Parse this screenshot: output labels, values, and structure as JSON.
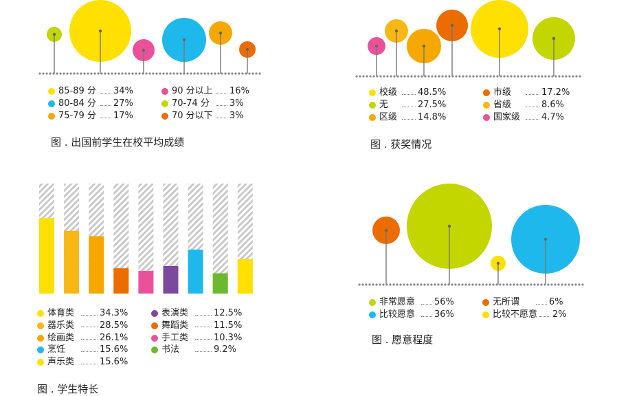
{
  "chart_data": [
    {
      "id": "scores",
      "type": "bubble",
      "title": "图 . 出国前学生在校平均成绩",
      "unit": "%",
      "series": [
        {
          "name": "85-89 分",
          "value": 34,
          "label": "34%",
          "color": "#FFE000"
        },
        {
          "name": "80-84 分",
          "value": 27,
          "label": "27%",
          "color": "#1FB8EC"
        },
        {
          "name": "75-79 分",
          "value": 17,
          "label": "17%",
          "color": "#F6A800"
        },
        {
          "name": "90 分以上",
          "value": 16,
          "label": "16%",
          "color": "#E9529B"
        },
        {
          "name": "70-74 分",
          "value": 3,
          "label": "3%",
          "color": "#C3D600"
        },
        {
          "name": "70 分以下",
          "value": 3,
          "label": "3%",
          "color": "#EC6C00"
        }
      ]
    },
    {
      "id": "awards",
      "type": "bubble",
      "title": "图 . 获奖情况",
      "unit": "%",
      "series": [
        {
          "name": "校级",
          "value": 48.5,
          "label": "48.5%",
          "color": "#FFE000"
        },
        {
          "name": "无",
          "value": 27.5,
          "label": "27.5%",
          "color": "#C3D600"
        },
        {
          "name": "区级",
          "value": 14.8,
          "label": "14.8%",
          "color": "#F6A800"
        },
        {
          "name": "市级",
          "value": 17.2,
          "label": "17.2%",
          "color": "#EC6C00"
        },
        {
          "name": "省级",
          "value": 8.6,
          "label": "8.6%",
          "color": "#F8B715"
        },
        {
          "name": "国家级",
          "value": 4.7,
          "label": "4.7%",
          "color": "#E9529B"
        }
      ]
    },
    {
      "id": "talents",
      "type": "bar",
      "title": "图 . 学生特长",
      "unit": "%",
      "ylim": [
        0,
        100
      ],
      "series": [
        {
          "name": "体育类",
          "value": 34.3,
          "label": "34.3%",
          "color": "#FFE000"
        },
        {
          "name": "器乐类",
          "value": 28.5,
          "label": "28.5%",
          "color": "#F8B715"
        },
        {
          "name": "绘画类",
          "value": 26.1,
          "label": "26.1%",
          "color": "#F6A800"
        },
        {
          "name": "烹饪",
          "value": 15.6,
          "label": "15.6%",
          "color": "#1FB8EC"
        },
        {
          "name": "声乐类",
          "value": 15.6,
          "label": "15.6%",
          "color": "#FFE000"
        },
        {
          "name": "表演类",
          "value": 12.5,
          "label": "12.5%",
          "color": "#7B4A9C"
        },
        {
          "name": "舞蹈类",
          "value": 11.5,
          "label": "11.5%",
          "color": "#EC6C00"
        },
        {
          "name": "手工类",
          "value": 10.3,
          "label": "10.3%",
          "color": "#E9529B"
        },
        {
          "name": "书法",
          "value": 9.2,
          "label": "9.2%",
          "color": "#6DB92E"
        }
      ]
    },
    {
      "id": "willingness",
      "type": "bubble",
      "title": "图 . 愿意程度",
      "unit": "%",
      "series": [
        {
          "name": "非常愿意",
          "value": 56,
          "label": "56%",
          "color": "#C3D600"
        },
        {
          "name": "比较愿意",
          "value": 36,
          "label": "36%",
          "color": "#1FB8EC"
        },
        {
          "name": "无所谓",
          "value": 6,
          "label": "6%",
          "color": "#EC6C00"
        },
        {
          "name": "比较不愿意",
          "value": 2,
          "label": "2%",
          "color": "#FFE000"
        }
      ]
    }
  ]
}
